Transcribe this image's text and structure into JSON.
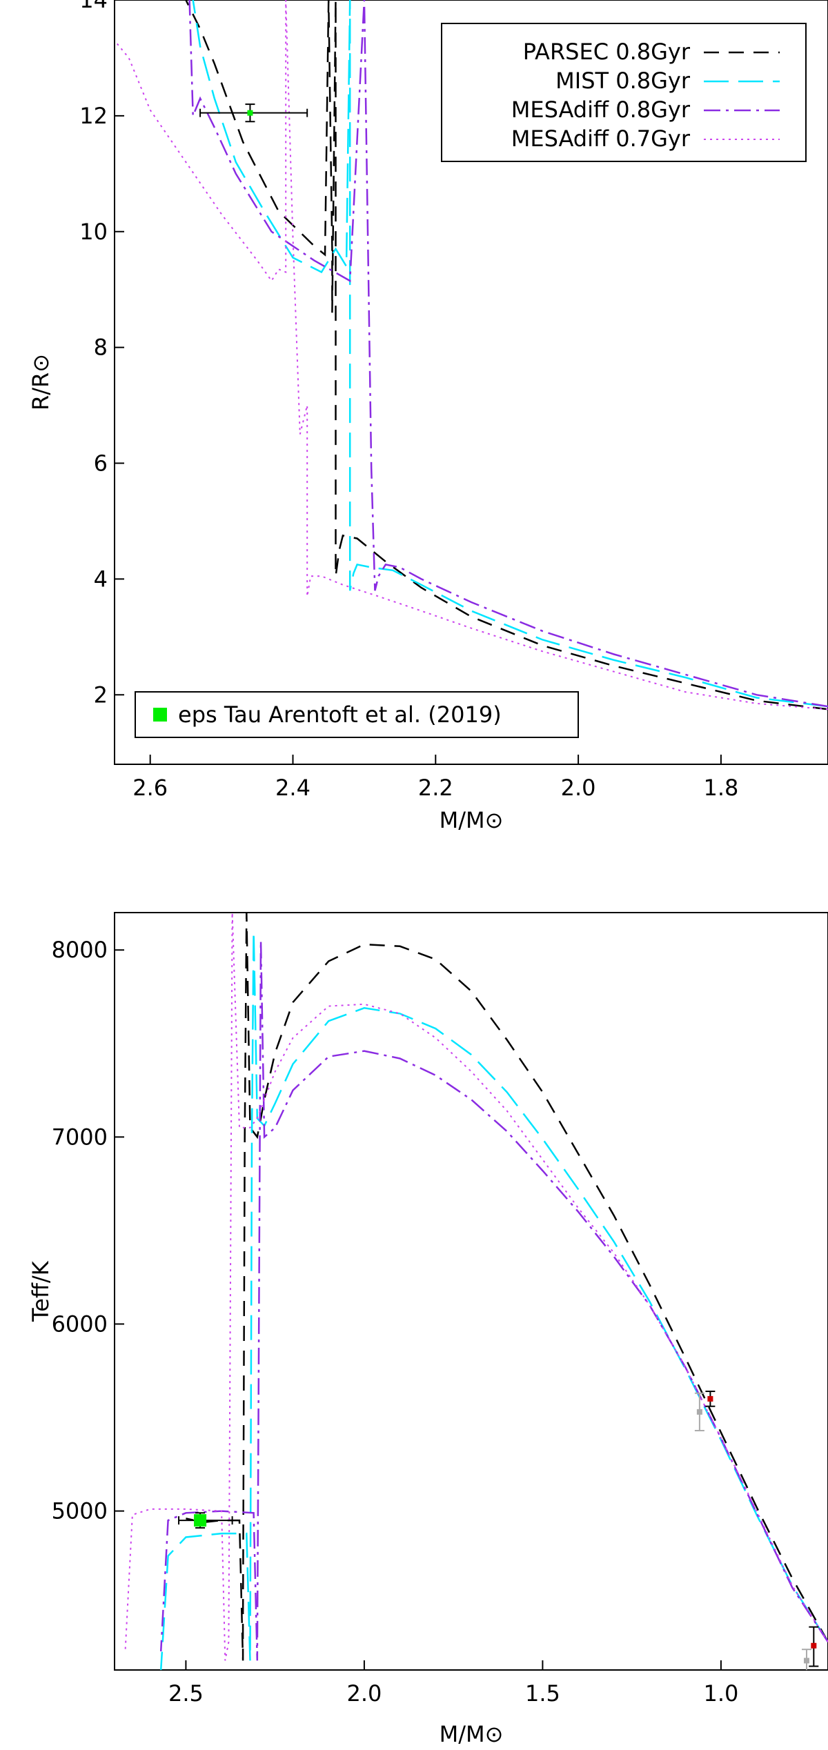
{
  "chart_data": [
    {
      "type": "line",
      "xlabel": "M/M⊙",
      "ylabel": "R/R⊙",
      "xlim": [
        2.65,
        1.65
      ],
      "ylim": [
        0.8,
        14.0
      ],
      "x_ticks": [
        2.6,
        2.4,
        2.2,
        2.0,
        1.8
      ],
      "x_tick_labels": [
        "2.6",
        "2.4",
        "2.2",
        "2.0",
        "1.8"
      ],
      "y_ticks": [
        2,
        4,
        6,
        8,
        10,
        12,
        14
      ],
      "y_tick_labels": [
        "2",
        "4",
        "6",
        "8",
        "10",
        "12",
        "14"
      ],
      "legend_position": "top-right",
      "legend2_position": "bottom-left",
      "series": [
        {
          "name": "PARSEC 0.8Gyr",
          "color": "#000000",
          "style": "dashed",
          "x": [
            1.65,
            1.75,
            1.85,
            1.95,
            2.05,
            2.15,
            2.22,
            2.27,
            2.31,
            2.33,
            2.335,
            2.34,
            2.34,
            2.345,
            2.345,
            2.35,
            2.355,
            2.37,
            2.42,
            2.47,
            2.51,
            2.53,
            2.55
          ],
          "y": [
            1.75,
            1.9,
            2.2,
            2.5,
            2.85,
            3.35,
            3.85,
            4.3,
            4.7,
            4.75,
            4.5,
            4.05,
            14.0,
            8.6,
            9.7,
            14.0,
            9.6,
            9.75,
            10.35,
            11.55,
            12.9,
            13.5,
            14.0
          ]
        },
        {
          "name": "MIST 0.8Gyr",
          "color": "#00e5ff",
          "style": "long-dashed",
          "x": [
            1.65,
            1.75,
            1.85,
            1.95,
            2.05,
            2.15,
            2.22,
            2.26,
            2.29,
            2.31,
            2.315,
            2.32,
            2.32,
            2.325,
            2.33,
            2.34,
            2.36,
            2.4,
            2.44,
            2.48,
            2.51,
            2.53,
            2.54
          ],
          "y": [
            1.8,
            1.95,
            2.3,
            2.6,
            2.95,
            3.45,
            3.9,
            4.15,
            4.2,
            4.25,
            4.1,
            3.8,
            14.0,
            9.4,
            9.5,
            9.7,
            9.3,
            9.55,
            10.35,
            11.2,
            12.3,
            13.2,
            14.0
          ]
        },
        {
          "name": "MESAdiff 0.8Gyr",
          "color": "#8a2be2",
          "style": "dash-dot",
          "x": [
            1.65,
            1.75,
            1.85,
            1.95,
            2.05,
            2.15,
            2.22,
            2.25,
            2.27,
            2.28,
            2.285,
            2.29,
            2.3,
            2.32,
            2.37,
            2.43,
            2.48,
            2.51,
            2.53,
            2.54,
            2.545
          ],
          "y": [
            1.8,
            2.0,
            2.35,
            2.7,
            3.1,
            3.6,
            4.0,
            4.2,
            4.25,
            4.05,
            3.8,
            5.9,
            14.0,
            9.15,
            9.5,
            10.0,
            11.0,
            11.8,
            12.3,
            12.0,
            14.0
          ]
        },
        {
          "name": "MESAdiff 0.7Gyr",
          "color": "#cc44ee",
          "style": "dotted",
          "x": [
            1.65,
            1.75,
            1.85,
            1.95,
            2.05,
            2.15,
            2.22,
            2.28,
            2.33,
            2.36,
            2.375,
            2.38,
            2.38,
            2.39,
            2.4,
            2.41,
            2.41,
            2.42,
            2.43,
            2.45,
            2.5,
            2.55,
            2.6,
            2.63,
            2.65
          ],
          "y": [
            1.75,
            1.85,
            2.05,
            2.4,
            2.75,
            3.15,
            3.45,
            3.7,
            3.9,
            4.05,
            4.05,
            3.7,
            7.0,
            6.5,
            9.9,
            14.0,
            9.3,
            9.35,
            9.15,
            9.5,
            10.3,
            11.2,
            12.1,
            13.0,
            13.3
          ]
        }
      ],
      "annotation_points": [
        {
          "name": "eps Tau Arentoft et al. (2019)",
          "x": 2.46,
          "y": 12.05,
          "xerr": [
            2.53,
            2.38
          ],
          "yerr": [
            11.9,
            12.2
          ],
          "color": "#00ee00"
        }
      ]
    },
    {
      "type": "line",
      "xlabel": "M/M⊙",
      "ylabel": "Teff/K",
      "xlim": [
        2.7,
        0.7
      ],
      "ylim": [
        4150,
        8200
      ],
      "x_ticks": [
        2.5,
        2.0,
        1.5,
        1.0
      ],
      "x_tick_labels": [
        "2.5",
        "2.0",
        "1.5",
        "1.0"
      ],
      "y_ticks": [
        5000,
        6000,
        7000,
        8000
      ],
      "y_tick_labels": [
        "5000",
        "6000",
        "7000",
        "8000"
      ],
      "series": [
        {
          "name": "PARSEC 0.8Gyr",
          "color": "#000000",
          "style": "dashed",
          "x": [
            0.7,
            0.8,
            0.9,
            1.0,
            1.1,
            1.2,
            1.3,
            1.4,
            1.5,
            1.6,
            1.7,
            1.8,
            1.9,
            2.0,
            2.1,
            2.2,
            2.25,
            2.28,
            2.3,
            2.32,
            2.33,
            2.335,
            2.34,
            2.34,
            2.35,
            2.4,
            2.45,
            2.5
          ],
          "y": [
            4300,
            4640,
            5020,
            5420,
            5820,
            6210,
            6580,
            6910,
            7240,
            7520,
            7780,
            7950,
            8020,
            8030,
            7940,
            7720,
            7450,
            7200,
            7000,
            7050,
            8200,
            7000,
            4400,
            4200,
            4950,
            4950,
            4940,
            4960
          ]
        },
        {
          "name": "MIST 0.8Gyr",
          "color": "#00e5ff",
          "style": "long-dashed",
          "x": [
            0.7,
            0.8,
            0.9,
            1.0,
            1.1,
            1.2,
            1.3,
            1.4,
            1.5,
            1.6,
            1.7,
            1.8,
            1.9,
            2.0,
            2.1,
            2.2,
            2.25,
            2.28,
            2.3,
            2.31,
            2.315,
            2.32,
            2.33,
            2.4,
            2.5,
            2.55,
            2.57
          ],
          "y": [
            4300,
            4600,
            4980,
            5380,
            5760,
            6120,
            6440,
            6720,
            6990,
            7240,
            7440,
            7580,
            7660,
            7690,
            7620,
            7390,
            7180,
            7060,
            7100,
            8100,
            7000,
            4200,
            4880,
            4880,
            4860,
            4760,
            4150
          ]
        },
        {
          "name": "MESAdiff 0.8Gyr",
          "color": "#8a2be2",
          "style": "dash-dot",
          "x": [
            0.7,
            0.8,
            0.9,
            1.0,
            1.1,
            1.2,
            1.3,
            1.4,
            1.5,
            1.6,
            1.7,
            1.8,
            1.9,
            2.0,
            2.1,
            2.2,
            2.25,
            2.28,
            2.29,
            2.3,
            2.31,
            2.4,
            2.5,
            2.55,
            2.57
          ],
          "y": [
            4300,
            4590,
            4990,
            5390,
            5770,
            6100,
            6360,
            6600,
            6820,
            7030,
            7200,
            7330,
            7420,
            7460,
            7430,
            7250,
            7050,
            7000,
            8050,
            4200,
            4990,
            5000,
            4990,
            4950,
            4250
          ]
        },
        {
          "name": "MESAdiff 0.7Gyr",
          "color": "#cc44ee",
          "style": "dotted",
          "x": [
            0.7,
            0.8,
            0.9,
            1.0,
            1.1,
            1.2,
            1.3,
            1.4,
            1.5,
            1.6,
            1.7,
            1.8,
            1.9,
            2.0,
            2.1,
            2.2,
            2.25,
            2.28,
            2.3,
            2.32,
            2.35,
            2.37,
            2.38,
            2.39,
            2.4,
            2.5,
            2.6,
            2.65,
            2.67
          ],
          "y": [
            4300,
            4600,
            5000,
            5390,
            5770,
            6100,
            6380,
            6620,
            6880,
            7140,
            7350,
            7530,
            7660,
            7710,
            7700,
            7530,
            7350,
            7200,
            7100,
            7050,
            7050,
            8200,
            4300,
            4200,
            5000,
            5010,
            5010,
            4980,
            4250
          ]
        }
      ],
      "data_points": [
        {
          "x": 2.46,
          "y": 4950,
          "yerr": [
            4910,
            4990
          ],
          "xerr": [
            2.52,
            2.37
          ],
          "color": "#00ee00",
          "marker": "square"
        },
        {
          "x": 1.03,
          "y": 5600,
          "yerr": [
            5560,
            5640
          ],
          "color": "#cc0000"
        },
        {
          "x": 1.06,
          "y": 5530,
          "yerr": [
            5430,
            5630
          ],
          "color": "#aaaaaa"
        },
        {
          "x": 0.74,
          "y": 4280,
          "yerr": [
            4170,
            4380
          ],
          "color": "#cc0000"
        },
        {
          "x": 0.76,
          "y": 4200,
          "yerr": [
            4130,
            4260
          ],
          "color": "#aaaaaa"
        }
      ]
    }
  ]
}
